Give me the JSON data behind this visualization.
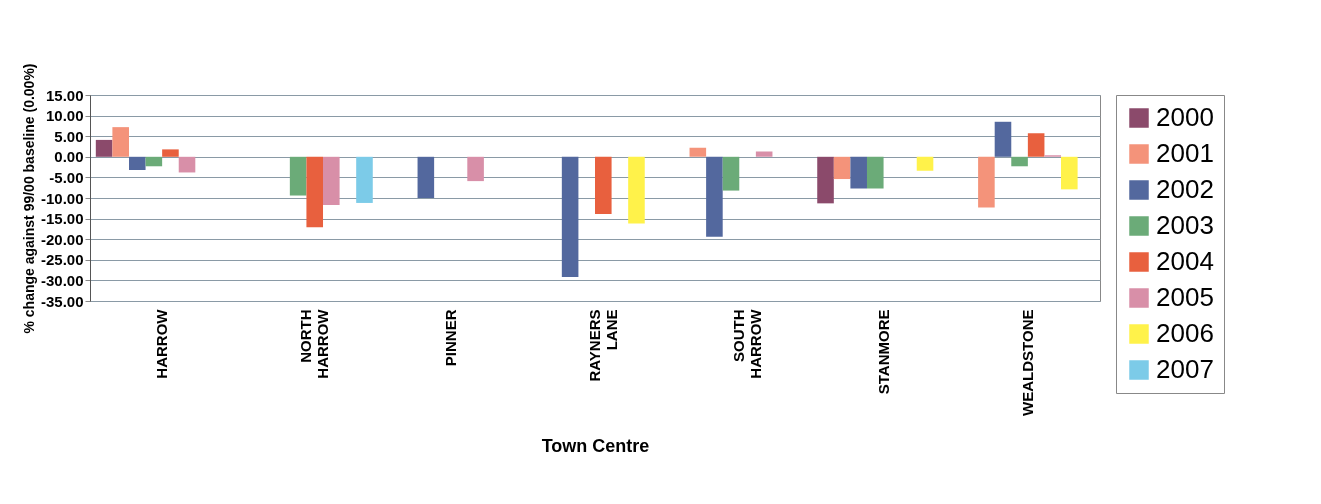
{
  "chart_data": {
    "type": "bar",
    "xlabel": "Town Centre",
    "ylabel": "% change against 99/00 baseline (0.00%)",
    "categories": [
      "HARROW",
      "NORTH HARROW",
      "PINNER",
      "RAYNERS LANE",
      "SOUTH HARROW",
      "STANMORE",
      "WEALDSTONE"
    ],
    "series": [
      {
        "name": "2000",
        "color": "#8b4a6b",
        "values": [
          4.1,
          null,
          null,
          null,
          null,
          -11.3,
          null
        ]
      },
      {
        "name": "2001",
        "color": "#f4937a",
        "values": [
          7.2,
          null,
          null,
          null,
          2.2,
          -5.4,
          -12.3
        ]
      },
      {
        "name": "2002",
        "color": "#53689e",
        "values": [
          -3.2,
          null,
          -10.0,
          -29.2,
          -19.4,
          -7.7,
          8.5
        ]
      },
      {
        "name": "2003",
        "color": "#6bab78",
        "values": [
          -2.3,
          -9.4,
          null,
          null,
          -8.2,
          -7.7,
          -2.3
        ]
      },
      {
        "name": "2004",
        "color": "#e8603e",
        "values": [
          1.8,
          -17.1,
          null,
          -13.9,
          null,
          null,
          5.7
        ]
      },
      {
        "name": "2005",
        "color": "#d88fa8",
        "values": [
          -3.8,
          -11.7,
          -5.9,
          null,
          1.3,
          null,
          0.4
        ]
      },
      {
        "name": "2006",
        "color": "#fff24a",
        "values": [
          null,
          null,
          null,
          -16.2,
          null,
          -3.4,
          -7.9
        ]
      },
      {
        "name": "2007",
        "color": "#7ccbe8",
        "values": [
          null,
          -11.2,
          null,
          null,
          null,
          null,
          null
        ]
      }
    ],
    "ylim": [
      -35,
      15
    ],
    "yticks": [
      {
        "value": -35,
        "label": "-35.00"
      },
      {
        "value": -30,
        "label": "-30.00"
      },
      {
        "value": -25,
        "label": "-25.00"
      },
      {
        "value": -20,
        "label": "-20.00"
      },
      {
        "value": -15,
        "label": "-15.00"
      },
      {
        "value": -10,
        "label": "-10.00"
      },
      {
        "value": -5,
        "label": "-5.00"
      },
      {
        "value": 0,
        "label": "0.00"
      },
      {
        "value": 5,
        "label": "5.00"
      },
      {
        "value": 10,
        "label": "10.00"
      },
      {
        "value": 15,
        "label": "15.00"
      }
    ],
    "grid": "y",
    "legend": "right"
  }
}
